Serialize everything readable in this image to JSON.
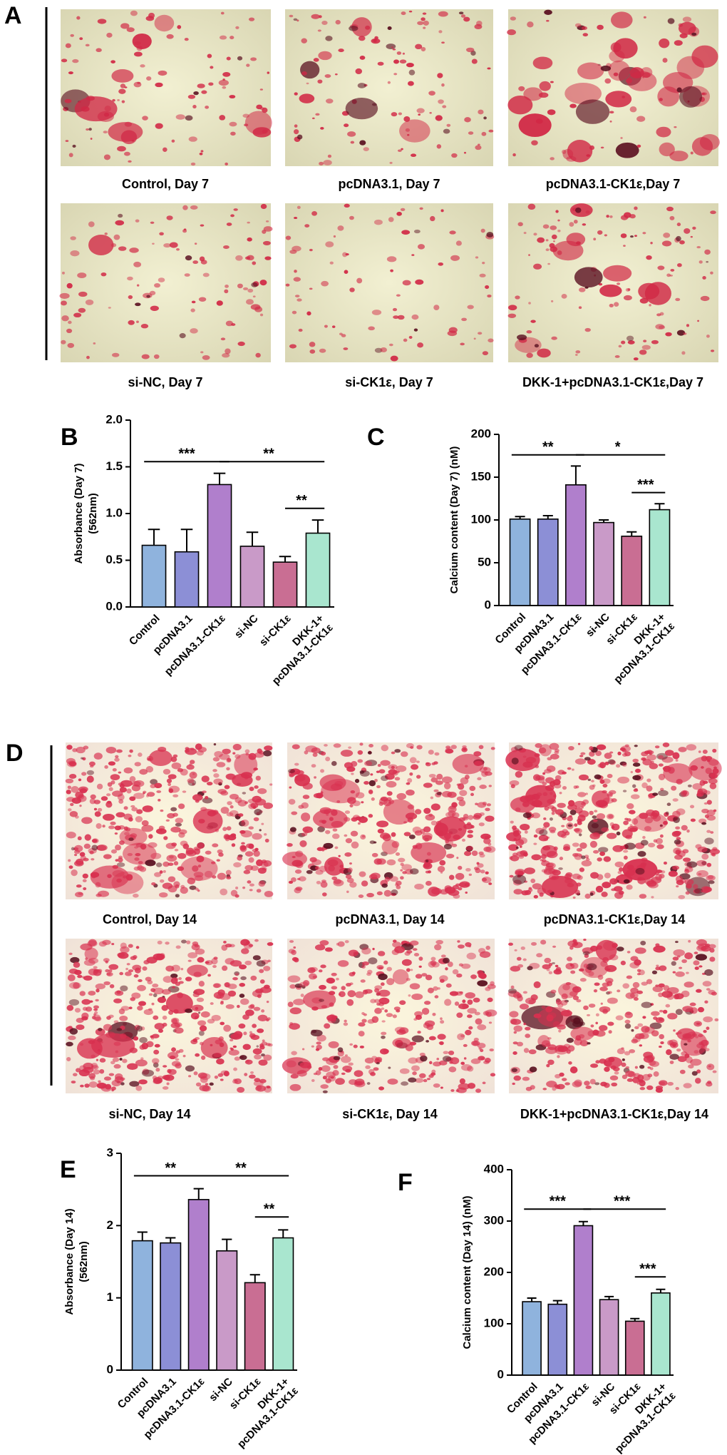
{
  "panel_A": {
    "letter": "A",
    "captions": [
      "Control, Day 7",
      "pcDNA3.1, Day 7",
      "pcDNA3.1-CK1ε,Day 7",
      "si-NC, Day 7",
      "si-CK1ε, Day 7",
      "DKK-1+pcDNA3.1-CK1ε,Day 7"
    ]
  },
  "panel_D": {
    "letter": "D",
    "captions": [
      "Control, Day 14",
      "pcDNA3.1, Day 14",
      "pcDNA3.1-CK1ε,Day 14",
      "si-NC, Day 14",
      "si-CK1ε, Day 14",
      "DKK-1+pcDNA3.1-CK1ε,Day 14"
    ]
  },
  "chart_data": [
    {
      "type": "bar",
      "panel": "B",
      "ylabel": [
        "Absorbance (Day 7)",
        "(562nm)"
      ],
      "categories": [
        "Control",
        "pcDNA3.1",
        "pcDNA3.1-CK1ε",
        "si-NC",
        "si-CK1ε",
        [
          "DKK-1+",
          "pcDNA3.1-CK1ε"
        ]
      ],
      "values": [
        0.66,
        0.59,
        1.31,
        0.65,
        0.48,
        0.79
      ],
      "errors": [
        0.17,
        0.24,
        0.12,
        0.15,
        0.06,
        0.14
      ],
      "colors": [
        "#8fb3dd",
        "#8c8fd6",
        "#b07fcc",
        "#c99ac8",
        "#c96e93",
        "#a9e6cf"
      ],
      "ylim": [
        0,
        2
      ],
      "yticks": [
        {
          "value": 0,
          "label": "0.0"
        },
        0.5,
        {
          "value": 1,
          "label": "1.0"
        },
        1.5,
        {
          "value": 2,
          "label": "2.0"
        }
      ],
      "significance": [
        {
          "from": 0,
          "to": 2,
          "label": "***"
        },
        {
          "from": 2,
          "to": 5,
          "label": "**"
        },
        {
          "from": 4,
          "to": 5,
          "label": "**"
        }
      ]
    },
    {
      "type": "bar",
      "panel": "C",
      "ylabel": [
        "Calcium content (Day 7) (nM)"
      ],
      "categories": [
        "Control",
        "pcDNA3.1",
        "pcDNA3.1-CK1ε",
        "si-NC",
        "si-CK1ε",
        [
          "DKK-1+",
          "pcDNA3.1-CK1ε"
        ]
      ],
      "values": [
        101,
        101,
        141,
        97,
        81,
        112
      ],
      "errors": [
        3,
        4,
        22,
        3,
        5,
        7
      ],
      "colors": [
        "#8fb3dd",
        "#8c8fd6",
        "#b07fcc",
        "#c99ac8",
        "#c96e93",
        "#a9e6cf"
      ],
      "ylim": [
        0,
        200
      ],
      "yticks": [
        0,
        50,
        100,
        150,
        200
      ],
      "significance": [
        {
          "from": 0,
          "to": 2,
          "label": "**"
        },
        {
          "from": 2,
          "to": 5,
          "label": "*"
        },
        {
          "from": 4,
          "to": 5,
          "label": "***"
        }
      ]
    },
    {
      "type": "bar",
      "panel": "E",
      "ylabel": [
        "Absorbance (Day 14)",
        "(562nm)"
      ],
      "categories": [
        "Control",
        "pcDNA3.1",
        "pcDNA3.1-CK1ε",
        "si-NC",
        "si-CK1ε",
        [
          "DKK-1+",
          "pcDNA3.1-CK1ε"
        ]
      ],
      "values": [
        1.79,
        1.76,
        2.36,
        1.65,
        1.21,
        1.83
      ],
      "errors": [
        0.12,
        0.07,
        0.15,
        0.16,
        0.11,
        0.11
      ],
      "colors": [
        "#8fb3dd",
        "#8c8fd6",
        "#b07fcc",
        "#c99ac8",
        "#c96e93",
        "#a9e6cf"
      ],
      "ylim": [
        0,
        3
      ],
      "yticks": [
        0,
        1,
        2,
        3
      ],
      "significance": [
        {
          "from": 0,
          "to": 2,
          "label": "**"
        },
        {
          "from": 2,
          "to": 5,
          "label": "**"
        },
        {
          "from": 4,
          "to": 5,
          "label": "**"
        }
      ]
    },
    {
      "type": "bar",
      "panel": "F",
      "ylabel": [
        "Calcium content (Day 14) (nM)"
      ],
      "categories": [
        "Control",
        "pcDNA3.1",
        "pcDNA3.1-CK1ε",
        "si-NC",
        "si-CK1ε",
        [
          "DKK-1+",
          "pcDNA3.1-CK1ε"
        ]
      ],
      "values": [
        143,
        138,
        291,
        147,
        105,
        160
      ],
      "errors": [
        7,
        7,
        8,
        6,
        5,
        7
      ],
      "colors": [
        "#8fb3dd",
        "#8c8fd6",
        "#b07fcc",
        "#c99ac8",
        "#c96e93",
        "#a9e6cf"
      ],
      "ylim": [
        0,
        400
      ],
      "yticks": [
        0,
        100,
        200,
        300,
        400
      ],
      "significance": [
        {
          "from": 0,
          "to": 2,
          "label": "***"
        },
        {
          "from": 2,
          "to": 5,
          "label": "***"
        },
        {
          "from": 4,
          "to": 5,
          "label": "***"
        }
      ]
    }
  ]
}
